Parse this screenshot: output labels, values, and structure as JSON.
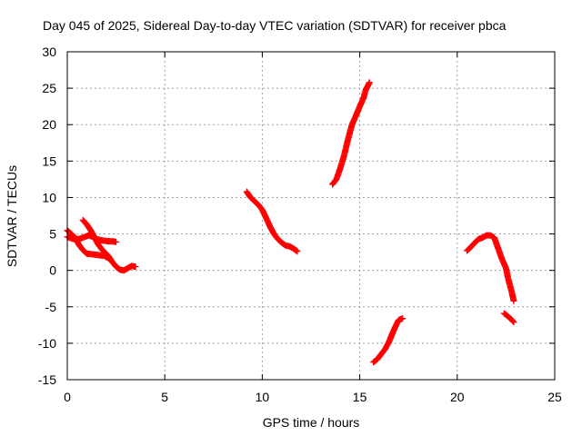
{
  "chart_data": {
    "type": "scatter",
    "title": "Day 045 of 2025, Sidereal Day-to-day VTEC variation (SDTVAR) for receiver pbca",
    "xlabel": "GPS time / hours",
    "ylabel": "SDTVAR / TECUs",
    "xlim": [
      0,
      25
    ],
    "ylim": [
      -15,
      30
    ],
    "xticks": [
      0,
      5,
      10,
      15,
      20,
      25
    ],
    "yticks": [
      -15,
      -10,
      -5,
      0,
      5,
      10,
      15,
      20,
      25,
      30
    ],
    "grid": true,
    "marker": "plus",
    "color": "#ff0000",
    "series": [
      {
        "segments": [
          [
            [
              0.0,
              5.5
            ],
            [
              0.2,
              5.0
            ],
            [
              0.4,
              4.5
            ],
            [
              0.6,
              3.5
            ],
            [
              0.8,
              2.8
            ],
            [
              1.0,
              2.3
            ],
            [
              1.3,
              2.2
            ],
            [
              1.6,
              2.1
            ],
            [
              1.9,
              2.0
            ],
            [
              2.1,
              1.7
            ],
            [
              2.3,
              1.2
            ]
          ],
          [
            [
              0.0,
              4.6
            ],
            [
              0.3,
              4.3
            ],
            [
              0.6,
              4.3
            ],
            [
              0.9,
              4.6
            ],
            [
              1.1,
              4.8
            ],
            [
              1.3,
              4.6
            ],
            [
              1.5,
              4.3
            ],
            [
              1.8,
              4.1
            ],
            [
              2.1,
              4.0
            ],
            [
              2.3,
              4.0
            ],
            [
              2.5,
              3.9
            ]
          ],
          [
            [
              0.8,
              6.9
            ],
            [
              1.0,
              6.3
            ],
            [
              1.2,
              5.5
            ],
            [
              1.4,
              4.5
            ],
            [
              1.6,
              3.5
            ],
            [
              1.8,
              2.8
            ],
            [
              2.1,
              2.0
            ],
            [
              2.3,
              1.2
            ],
            [
              2.5,
              0.5
            ],
            [
              2.7,
              0.1
            ],
            [
              2.9,
              0.0
            ],
            [
              3.1,
              0.3
            ],
            [
              3.3,
              0.6
            ],
            [
              3.5,
              0.5
            ]
          ],
          [
            [
              9.2,
              10.8
            ],
            [
              9.4,
              10.0
            ],
            [
              9.6,
              9.5
            ],
            [
              9.8,
              9.0
            ],
            [
              10.0,
              8.3
            ],
            [
              10.2,
              7.2
            ],
            [
              10.4,
              6.0
            ],
            [
              10.6,
              5.0
            ],
            [
              10.8,
              4.3
            ],
            [
              11.0,
              3.8
            ],
            [
              11.2,
              3.4
            ],
            [
              11.4,
              3.3
            ],
            [
              11.6,
              3.0
            ],
            [
              11.8,
              2.6
            ]
          ],
          [
            [
              13.6,
              11.8
            ],
            [
              13.8,
              12.5
            ],
            [
              14.0,
              14.0
            ],
            [
              14.2,
              15.8
            ],
            [
              14.4,
              18.0
            ],
            [
              14.6,
              20.0
            ],
            [
              14.8,
              21.2
            ],
            [
              15.0,
              22.5
            ],
            [
              15.2,
              23.7
            ],
            [
              15.3,
              24.7
            ],
            [
              15.5,
              25.8
            ]
          ],
          [
            [
              15.7,
              -12.6
            ],
            [
              15.9,
              -12.2
            ],
            [
              16.1,
              -11.5
            ],
            [
              16.3,
              -10.8
            ],
            [
              16.5,
              -9.8
            ],
            [
              16.7,
              -8.5
            ],
            [
              16.9,
              -7.3
            ],
            [
              17.0,
              -6.8
            ],
            [
              17.2,
              -6.6
            ]
          ],
          [
            [
              20.5,
              2.7
            ],
            [
              20.7,
              3.2
            ],
            [
              20.9,
              3.8
            ],
            [
              21.1,
              4.3
            ],
            [
              21.3,
              4.5
            ],
            [
              21.5,
              4.8
            ],
            [
              21.7,
              4.8
            ],
            [
              21.9,
              4.5
            ],
            [
              22.1,
              3.0
            ],
            [
              22.3,
              1.5
            ],
            [
              22.5,
              0.3
            ],
            [
              22.6,
              -1.0
            ],
            [
              22.7,
              -2.0
            ],
            [
              22.8,
              -3.0
            ],
            [
              22.9,
              -4.2
            ]
          ],
          [
            [
              22.4,
              -5.9
            ],
            [
              22.6,
              -6.3
            ],
            [
              22.8,
              -6.8
            ],
            [
              22.9,
              -7.1
            ]
          ]
        ]
      }
    ]
  }
}
